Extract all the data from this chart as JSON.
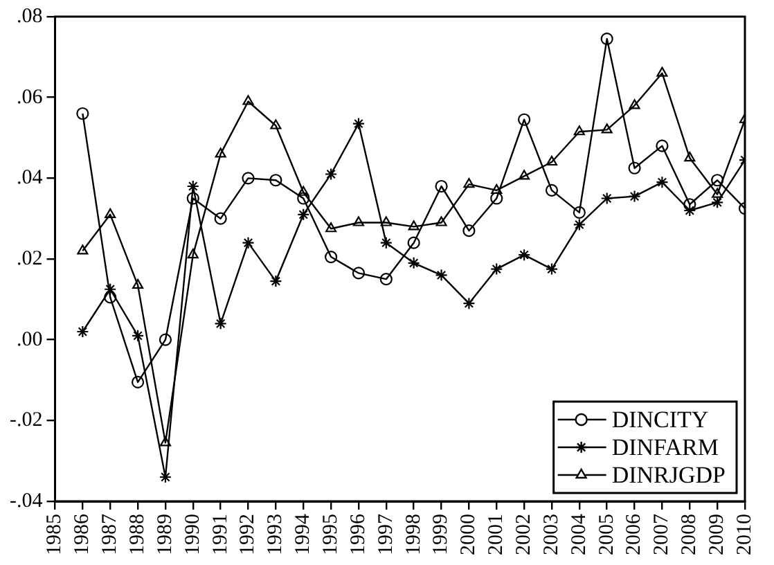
{
  "chart_data": {
    "type": "line",
    "x": [
      1986,
      1987,
      1988,
      1989,
      1990,
      1991,
      1992,
      1993,
      1994,
      1995,
      1996,
      1997,
      1998,
      1999,
      2000,
      2001,
      2002,
      2003,
      2004,
      2005,
      2006,
      2007,
      2008,
      2009,
      2010
    ],
    "xlim": [
      1985,
      2010
    ],
    "xticks": [
      1985,
      1986,
      1987,
      1988,
      1989,
      1990,
      1991,
      1992,
      1993,
      1994,
      1995,
      1996,
      1997,
      1998,
      1999,
      2000,
      2001,
      2002,
      2003,
      2004,
      2005,
      2006,
      2007,
      2008,
      2009,
      2010
    ],
    "ylim": [
      -0.04,
      0.08
    ],
    "yticks": [
      {
        "value": -0.04,
        "label": "-.04"
      },
      {
        "value": -0.02,
        "label": "-.02"
      },
      {
        "value": 0,
        "label": ".00"
      },
      {
        "value": 0.02,
        "label": ".02"
      },
      {
        "value": 0.04,
        "label": ".04"
      },
      {
        "value": 0.06,
        "label": ".06"
      },
      {
        "value": 0.08,
        "label": ".08"
      }
    ],
    "grid": false,
    "legend": "bottom right",
    "line_style": "solid",
    "series": [
      {
        "name": "DINCITY",
        "color": "#000000",
        "marker": "circle",
        "values": [
          0.056,
          0.0105,
          -0.0105,
          0.0,
          0.035,
          0.03,
          0.04,
          0.0395,
          0.035,
          0.0205,
          0.0165,
          0.015,
          0.024,
          0.038,
          0.027,
          0.035,
          0.0545,
          0.037,
          0.0315,
          0.0745,
          0.0425,
          0.048,
          0.0335,
          0.0395,
          0.0325
        ]
      },
      {
        "name": "DINFARM",
        "color": "#000000",
        "marker": "cross",
        "values": [
          0.002,
          0.0125,
          0.001,
          -0.034,
          0.038,
          0.004,
          0.024,
          0.0145,
          0.031,
          0.041,
          0.0535,
          0.024,
          0.019,
          0.016,
          0.009,
          0.0175,
          0.021,
          0.0175,
          0.0285,
          0.035,
          0.0355,
          0.039,
          0.032,
          0.034,
          0.0445
        ]
      },
      {
        "name": "DINRJGDP",
        "color": "#000000",
        "marker": "triangle",
        "values": [
          0.022,
          0.031,
          0.0135,
          -0.0255,
          0.021,
          0.046,
          0.059,
          0.053,
          0.0365,
          0.0275,
          0.029,
          0.029,
          0.028,
          0.029,
          0.0385,
          0.037,
          0.0405,
          0.044,
          0.0515,
          0.052,
          0.058,
          0.066,
          0.045,
          0.036,
          0.0545
        ]
      }
    ]
  }
}
